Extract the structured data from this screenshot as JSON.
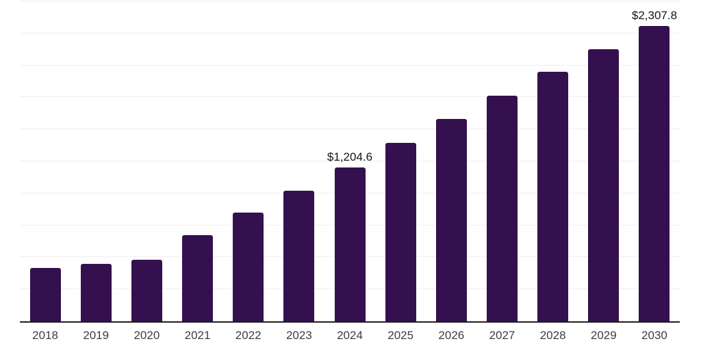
{
  "chart_data": {
    "type": "bar",
    "title": "",
    "xlabel": "",
    "ylabel": "",
    "categories": [
      "2018",
      "2019",
      "2020",
      "2021",
      "2022",
      "2023",
      "2024",
      "2025",
      "2026",
      "2027",
      "2028",
      "2029",
      "2030"
    ],
    "values": [
      417,
      449,
      479,
      674,
      848,
      1023,
      1204.6,
      1396,
      1583,
      1761,
      1950,
      2128,
      2307.8
    ],
    "value_labels": [
      "",
      "",
      "",
      "",
      "",
      "",
      "$1,204.6",
      "",
      "",
      "",
      "",
      "",
      "$2,307.8"
    ],
    "ylim": [
      0,
      2500
    ],
    "grid_step": 250,
    "gridlines": "horizontal",
    "y_tick_labels_visible": false,
    "legend_position": "none",
    "colors": {
      "bar": "#35104E",
      "axis": "#1F1F1F",
      "gridline": "#EFEFEF",
      "tick_label": "#3D3D3D",
      "value_label": "#151515",
      "background": "#FFFFFF"
    }
  }
}
